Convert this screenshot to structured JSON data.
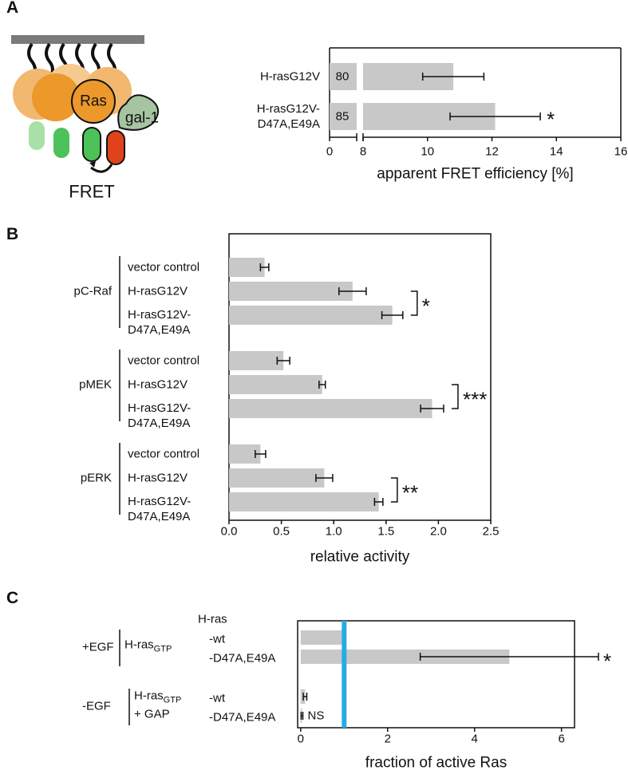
{
  "panel_labels": [
    "A",
    "B",
    "C"
  ],
  "diagram": {
    "ras": "Ras",
    "galectin": "gal-1",
    "fret": "FRET"
  },
  "chart_data": [
    {
      "type": "bar",
      "orientation": "horizontal",
      "categories": [
        "H-rasG12V",
        "H-rasG12V-\nD47A,E49A"
      ],
      "values": [
        10.8,
        12.1
      ],
      "errors": [
        0.95,
        1.4
      ],
      "bar_labels": [
        "80",
        "85"
      ],
      "annotations": [
        null,
        "*"
      ],
      "xlabel": "apparent FRET efficiency [%]",
      "xlim": [
        0,
        16
      ],
      "xbreak": [
        0.8,
        8
      ],
      "xticks": [
        0,
        8,
        10,
        12,
        14,
        16
      ],
      "color": "#c8c8c8"
    },
    {
      "type": "bar",
      "orientation": "horizontal",
      "groups": [
        {
          "name": "pC-Raf",
          "categories": [
            "vector control",
            "H-rasG12V",
            "H-rasG12V-\nD47A,E49A"
          ],
          "values": [
            0.34,
            1.18,
            1.56
          ],
          "errors": [
            0.04,
            0.13,
            0.1
          ],
          "significance": "*"
        },
        {
          "name": "pMEK",
          "categories": [
            "vector control",
            "H-rasG12V",
            "H-rasG12V-\nD47A,E49A"
          ],
          "values": [
            0.52,
            0.89,
            1.94
          ],
          "errors": [
            0.06,
            0.03,
            0.11
          ],
          "significance": "***"
        },
        {
          "name": "pERK",
          "categories": [
            "vector control",
            "H-rasG12V",
            "H-rasG12V-\nD47A,E49A"
          ],
          "values": [
            0.3,
            0.91,
            1.43
          ],
          "errors": [
            0.05,
            0.08,
            0.04
          ],
          "significance": "**"
        }
      ],
      "xlabel": "relative activity",
      "xlim": [
        0,
        2.5
      ],
      "xticks": [
        {
          "value": 0,
          "label": "0.0"
        },
        0.5,
        {
          "value": 1,
          "label": "1.0"
        },
        1.5,
        {
          "value": 2,
          "label": "2.0"
        },
        2.5
      ],
      "color": "#c8c8c8"
    },
    {
      "type": "bar",
      "orientation": "horizontal",
      "header": "H-ras",
      "groups": [
        {
          "name": "+EGF",
          "condition": "H-ras",
          "condition_sub": "GTP",
          "categories": [
            "-wt",
            "-D47A,E49A"
          ],
          "values": [
            1,
            4.8
          ],
          "errors": [
            null,
            2.05
          ],
          "annotations": [
            null,
            "*"
          ]
        },
        {
          "name": "-EGF",
          "condition": "H-ras",
          "condition_sub": "GTP",
          "condition_extra": "+ GAP",
          "categories": [
            "-wt",
            "-D47A,E49A"
          ],
          "values": [
            0.1,
            0.03
          ],
          "errors": [
            0.04,
            0.02
          ],
          "annotations": [
            null,
            "NS"
          ]
        }
      ],
      "ref_line": 1,
      "ref_color": "#29abe2",
      "xlabel": "fraction of active Ras",
      "xlim": [
        -0.07,
        6.3
      ],
      "xticks": [
        0,
        2,
        4,
        6
      ],
      "color": "#c8c8c8"
    }
  ]
}
